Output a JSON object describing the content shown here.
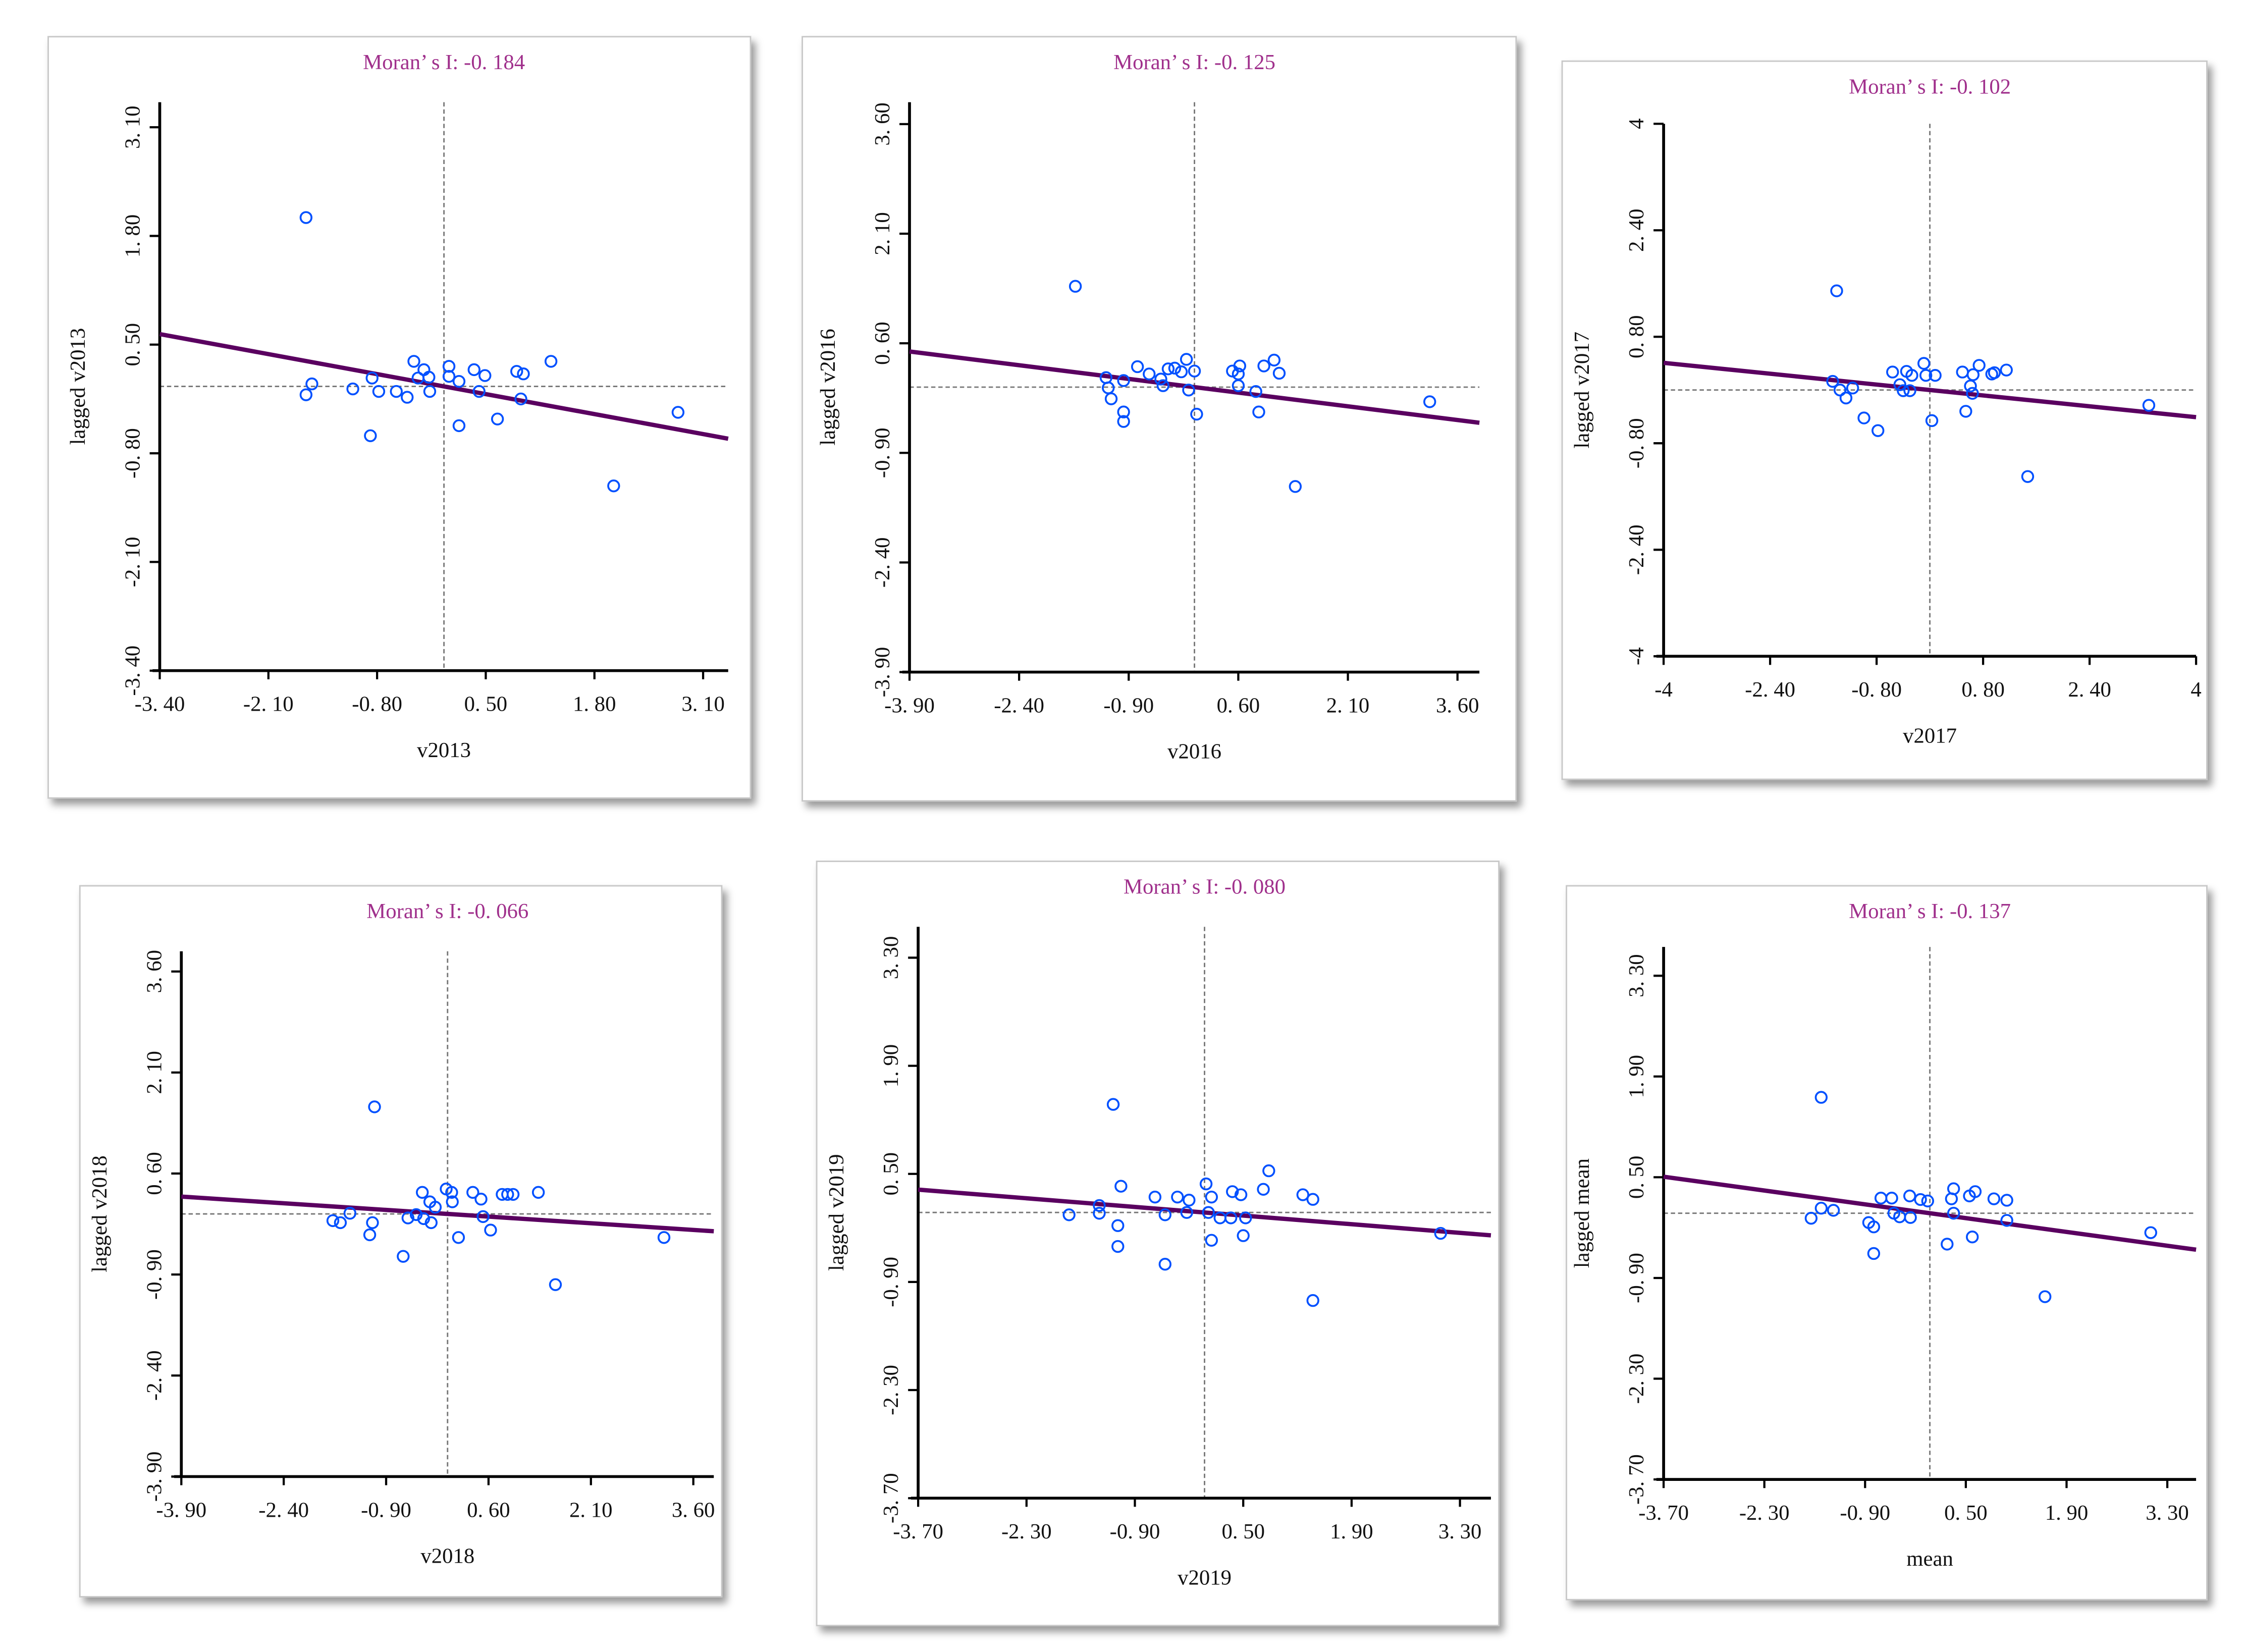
{
  "chart_data": [
    {
      "type": "scatter",
      "title": "Moran’ s I: -0. 184",
      "morans_i": -0.184,
      "xlabel": "v2013",
      "ylabel": "lagged v2013",
      "xlim": [
        -3.4,
        3.4
      ],
      "ylim": [
        -3.4,
        3.4
      ],
      "xticks": [
        "-3. 40",
        "-2. 10",
        "-0. 80",
        "0. 50",
        "1. 80",
        "3. 10"
      ],
      "yticks": [
        "-3. 40",
        "-2. 10",
        "-0. 80",
        "0. 50",
        "1. 80",
        "3. 10"
      ],
      "regression": {
        "slope": -0.184,
        "intercept": 0.0
      },
      "points": [
        [
          -1.65,
          2.02
        ],
        [
          -1.65,
          -0.1
        ],
        [
          -1.58,
          0.03
        ],
        [
          -1.09,
          -0.03
        ],
        [
          -0.88,
          -0.59
        ],
        [
          -0.86,
          0.1
        ],
        [
          -0.78,
          -0.06
        ],
        [
          -0.57,
          -0.06
        ],
        [
          -0.44,
          -0.13
        ],
        [
          -0.36,
          0.3
        ],
        [
          -0.31,
          0.1
        ],
        [
          -0.24,
          0.2
        ],
        [
          -0.18,
          0.11
        ],
        [
          -0.17,
          -0.06
        ],
        [
          0.06,
          0.24
        ],
        [
          0.06,
          0.12
        ],
        [
          0.18,
          0.06
        ],
        [
          0.18,
          -0.47
        ],
        [
          0.36,
          0.2
        ],
        [
          0.42,
          -0.06
        ],
        [
          0.49,
          0.13
        ],
        [
          0.64,
          -0.39
        ],
        [
          0.87,
          0.18
        ],
        [
          0.95,
          0.15
        ],
        [
          0.92,
          -0.15
        ],
        [
          1.28,
          0.3
        ],
        [
          2.03,
          -1.19
        ],
        [
          2.8,
          -0.31
        ]
      ]
    },
    {
      "type": "scatter",
      "title": "Moran’ s I: -0. 125",
      "morans_i": -0.125,
      "xlabel": "v2016",
      "ylabel": "lagged v2016",
      "xlim": [
        -3.9,
        3.9
      ],
      "ylim": [
        -3.9,
        3.9
      ],
      "xticks": [
        "-3. 90",
        "-2. 40",
        "-0. 90",
        "0. 60",
        "2. 10",
        "3. 60"
      ],
      "yticks": [
        "-3. 90",
        "-2. 40",
        "-0. 90",
        "0. 60",
        "2. 10",
        "3. 60"
      ],
      "regression": {
        "slope": -0.125,
        "intercept": 0.0
      },
      "points": [
        [
          -1.63,
          1.38
        ],
        [
          -1.21,
          0.13
        ],
        [
          -1.18,
          -0.01
        ],
        [
          -1.14,
          -0.16
        ],
        [
          -0.97,
          0.09
        ],
        [
          -0.97,
          -0.34
        ],
        [
          -0.97,
          -0.47
        ],
        [
          -0.78,
          0.28
        ],
        [
          -0.62,
          0.18
        ],
        [
          -0.46,
          0.11
        ],
        [
          -0.43,
          0.02
        ],
        [
          -0.36,
          0.25
        ],
        [
          -0.27,
          0.26
        ],
        [
          -0.18,
          0.21
        ],
        [
          -0.11,
          0.38
        ],
        [
          -0.08,
          -0.04
        ],
        [
          0.0,
          0.22
        ],
        [
          0.03,
          -0.37
        ],
        [
          0.52,
          0.22
        ],
        [
          0.6,
          0.18
        ],
        [
          0.62,
          0.29
        ],
        [
          0.6,
          0.02
        ],
        [
          0.84,
          -0.06
        ],
        [
          0.88,
          -0.34
        ],
        [
          0.95,
          0.29
        ],
        [
          1.09,
          0.37
        ],
        [
          1.16,
          0.19
        ],
        [
          1.38,
          -1.36
        ],
        [
          3.22,
          -0.2
        ]
      ]
    },
    {
      "type": "scatter",
      "title": "Moran’ s I: -0. 102",
      "morans_i": -0.102,
      "xlabel": "v2017",
      "ylabel": "lagged v2017",
      "xlim": [
        -4,
        4
      ],
      "ylim": [
        -4,
        4
      ],
      "xticks": [
        "-4",
        "-2. 40",
        "-0. 80",
        "0. 80",
        "2. 40",
        "4"
      ],
      "yticks": [
        "-4",
        "-2. 40",
        "-0. 80",
        "0. 80",
        "2. 40",
        "4"
      ],
      "regression": {
        "slope": -0.102,
        "intercept": 0.0
      },
      "points": [
        [
          -1.4,
          1.49
        ],
        [
          -1.46,
          0.13
        ],
        [
          -1.35,
          0.0
        ],
        [
          -1.26,
          -0.12
        ],
        [
          -1.16,
          0.03
        ],
        [
          -0.99,
          -0.42
        ],
        [
          -0.78,
          -0.61
        ],
        [
          -0.56,
          0.27
        ],
        [
          -0.45,
          0.08
        ],
        [
          -0.4,
          -0.01
        ],
        [
          -0.35,
          0.28
        ],
        [
          -0.3,
          -0.01
        ],
        [
          -0.27,
          0.22
        ],
        [
          -0.09,
          0.4
        ],
        [
          -0.06,
          0.22
        ],
        [
          0.08,
          0.22
        ],
        [
          0.03,
          -0.46
        ],
        [
          0.49,
          0.27
        ],
        [
          0.54,
          -0.32
        ],
        [
          0.61,
          0.06
        ],
        [
          0.64,
          -0.05
        ],
        [
          0.65,
          0.23
        ],
        [
          0.74,
          0.37
        ],
        [
          0.93,
          0.24
        ],
        [
          0.97,
          0.26
        ],
        [
          1.15,
          0.3
        ],
        [
          1.47,
          -1.3
        ],
        [
          3.29,
          -0.23
        ]
      ]
    },
    {
      "type": "scatter",
      "title": "Moran’ s I: -0. 066",
      "morans_i": -0.066,
      "xlabel": "v2018",
      "ylabel": "lagged v2018",
      "xlim": [
        -3.9,
        3.9
      ],
      "ylim": [
        -3.9,
        3.9
      ],
      "xticks": [
        "-3. 90",
        "-2. 40",
        "-0. 90",
        "0. 60",
        "2. 10",
        "3. 60"
      ],
      "yticks": [
        "-3. 90",
        "-2. 40",
        "-0. 90",
        "0. 60",
        "2. 10",
        "3. 60"
      ],
      "regression": {
        "slope": -0.066,
        "intercept": 0.0
      },
      "points": [
        [
          -1.07,
          1.59
        ],
        [
          -1.68,
          -0.1
        ],
        [
          -1.57,
          -0.13
        ],
        [
          -1.43,
          0.01
        ],
        [
          -1.14,
          -0.31
        ],
        [
          -1.1,
          -0.13
        ],
        [
          -0.65,
          -0.63
        ],
        [
          -0.58,
          -0.06
        ],
        [
          -0.46,
          -0.01
        ],
        [
          -0.37,
          0.32
        ],
        [
          -0.35,
          -0.07
        ],
        [
          -0.26,
          0.18
        ],
        [
          -0.24,
          -0.13
        ],
        [
          -0.18,
          0.1
        ],
        [
          -0.02,
          0.37
        ],
        [
          0.06,
          0.32
        ],
        [
          0.07,
          0.18
        ],
        [
          0.16,
          -0.35
        ],
        [
          0.37,
          0.32
        ],
        [
          0.49,
          0.22
        ],
        [
          0.52,
          -0.04
        ],
        [
          0.63,
          -0.24
        ],
        [
          0.8,
          0.29
        ],
        [
          0.88,
          0.29
        ],
        [
          0.96,
          0.29
        ],
        [
          1.33,
          0.32
        ],
        [
          1.58,
          -1.05
        ],
        [
          3.17,
          -0.35
        ]
      ]
    },
    {
      "type": "scatter",
      "title": "Moran’ s I: -0. 080",
      "morans_i": -0.08,
      "xlabel": "v2019",
      "ylabel": "lagged v2019",
      "xlim": [
        -3.7,
        3.7
      ],
      "ylim": [
        -3.7,
        3.7
      ],
      "xticks": [
        "-3. 70",
        "-2. 30",
        "-0. 90",
        "0. 50",
        "1. 90",
        "3. 30"
      ],
      "yticks": [
        "-3. 70",
        "-2. 30",
        "-0. 90",
        "0. 50",
        "1. 90",
        "3. 30"
      ],
      "regression": {
        "slope": -0.08,
        "intercept": 0.0
      },
      "points": [
        [
          -1.18,
          1.4
        ],
        [
          -1.75,
          -0.03
        ],
        [
          -1.36,
          -0.01
        ],
        [
          -1.36,
          0.09
        ],
        [
          -1.08,
          0.34
        ],
        [
          -1.12,
          -0.17
        ],
        [
          -1.12,
          -0.44
        ],
        [
          -0.64,
          0.2
        ],
        [
          -0.51,
          -0.03
        ],
        [
          -0.51,
          -0.67
        ],
        [
          -0.35,
          0.2
        ],
        [
          -0.23,
          0.0
        ],
        [
          -0.2,
          0.16
        ],
        [
          0.02,
          0.37
        ],
        [
          0.05,
          0.0
        ],
        [
          0.09,
          0.2
        ],
        [
          0.09,
          -0.36
        ],
        [
          0.2,
          -0.07
        ],
        [
          0.34,
          -0.07
        ],
        [
          0.36,
          0.27
        ],
        [
          0.47,
          0.23
        ],
        [
          0.5,
          -0.3
        ],
        [
          0.53,
          -0.07
        ],
        [
          0.76,
          0.3
        ],
        [
          0.83,
          0.54
        ],
        [
          1.27,
          0.23
        ],
        [
          1.4,
          0.17
        ],
        [
          1.4,
          -1.14
        ],
        [
          3.05,
          -0.27
        ]
      ]
    },
    {
      "type": "scatter",
      "title": "Moran’ s I: -0. 137",
      "morans_i": -0.137,
      "xlabel": "mean",
      "ylabel": "lagged mean",
      "xlim": [
        -3.7,
        3.7
      ],
      "ylim": [
        -3.7,
        3.7
      ],
      "xticks": [
        "-3. 70",
        "-2. 30",
        "-0. 90",
        "0. 50",
        "1. 90",
        "3. 30"
      ],
      "yticks": [
        "-3. 70",
        "-2. 30",
        "-0. 90",
        "0. 50",
        "1. 90",
        "3. 30"
      ],
      "regression": {
        "slope": -0.137,
        "intercept": 0.0
      },
      "points": [
        [
          -1.51,
          1.61
        ],
        [
          -1.65,
          -0.07
        ],
        [
          -1.51,
          0.07
        ],
        [
          -1.34,
          0.04
        ],
        [
          -0.85,
          -0.13
        ],
        [
          -0.78,
          -0.19
        ],
        [
          -0.78,
          -0.56
        ],
        [
          -0.68,
          0.21
        ],
        [
          -0.53,
          0.21
        ],
        [
          -0.5,
          0.0
        ],
        [
          -0.42,
          -0.05
        ],
        [
          -0.28,
          0.24
        ],
        [
          -0.27,
          -0.06
        ],
        [
          -0.13,
          0.19
        ],
        [
          -0.03,
          0.17
        ],
        [
          0.24,
          -0.43
        ],
        [
          0.3,
          0.2
        ],
        [
          0.33,
          0.34
        ],
        [
          0.33,
          0.0
        ],
        [
          0.55,
          0.24
        ],
        [
          0.63,
          0.3
        ],
        [
          0.59,
          -0.33
        ],
        [
          0.89,
          0.2
        ],
        [
          1.07,
          0.18
        ],
        [
          1.07,
          -0.1
        ],
        [
          1.6,
          -1.16
        ],
        [
          3.07,
          -0.27
        ]
      ]
    }
  ],
  "colors": {
    "title": "#a0308c",
    "points": "#0050ff",
    "regression_line": "#5a0060",
    "reference_lines": "#777777",
    "axis": "#000000"
  }
}
